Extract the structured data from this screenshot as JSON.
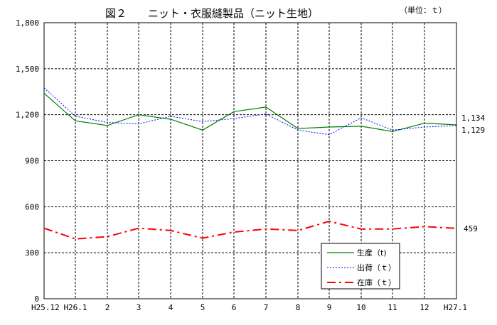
{
  "chart_data": {
    "type": "line",
    "title": "図２　　ニット・衣服縫製品（ニット生地）",
    "unit_note": "（単位：ｔ）",
    "categories": [
      "H25.12",
      "H26.1",
      "2",
      "3",
      "4",
      "5",
      "6",
      "7",
      "8",
      "9",
      "10",
      "11",
      "12",
      "H27.1"
    ],
    "ylim": [
      0,
      1800
    ],
    "yticks": [
      "0",
      "300",
      "600",
      "900",
      "1,200",
      "1,500",
      "1,800"
    ],
    "grid": true,
    "legend_position": "bottom-right",
    "series": [
      {
        "name": "生産（t)",
        "color": "#008000",
        "dash": "solid",
        "values": [
          1340,
          1160,
          1130,
          1200,
          1170,
          1100,
          1220,
          1250,
          1110,
          1120,
          1125,
          1090,
          1145,
          1134
        ]
      },
      {
        "name": "出荷（ｔ）",
        "color": "#0000ff",
        "dash": "dotted",
        "values": [
          1375,
          1190,
          1150,
          1140,
          1190,
          1155,
          1175,
          1205,
          1100,
          1070,
          1180,
          1100,
          1120,
          1129
        ]
      },
      {
        "name": "在庫（ｔ）",
        "color": "#ff0000",
        "dash": "dashdot",
        "values": [
          460,
          390,
          405,
          460,
          445,
          395,
          435,
          455,
          445,
          505,
          455,
          455,
          470,
          459
        ]
      }
    ],
    "end_labels": [
      "1,134",
      "1,129",
      "459"
    ]
  }
}
